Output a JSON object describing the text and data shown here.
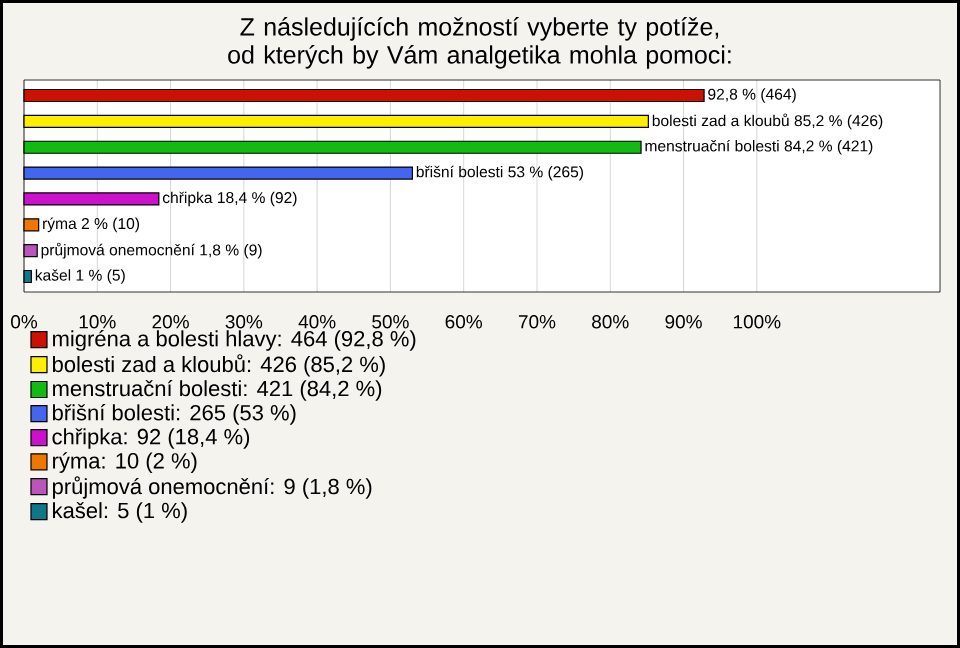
{
  "chart_data": {
    "type": "bar",
    "orientation": "horizontal",
    "title": "Z následujících možností vyberte ty potíže, od kterých by Vám analgetika mohla pomoci:",
    "categories": [
      null,
      null,
      null,
      null,
      null,
      null,
      null,
      null
    ],
    "series": [
      {
        "name": "migréna a bolesti hlavy: 464 (92,8 %)",
        "color": "#cc1100",
        "values": [
          92.8,
          null,
          null,
          null,
          null,
          null,
          null,
          null
        ],
        "value_labels": [
          "92,8 % (464)",
          null,
          null,
          null,
          null,
          null,
          null,
          null
        ]
      },
      {
        "name": "bolesti zad a kloubů: 426 (85,2 %)",
        "color": "#ffee00",
        "values": [
          null,
          85.2,
          null,
          null,
          null,
          null,
          null,
          null
        ],
        "value_labels": [
          null,
          "bolesti zad a kloubů 85,2 % (426)",
          null,
          null,
          null,
          null,
          null,
          null
        ]
      },
      {
        "name": "menstruační bolesti: 421 (84,2 %)",
        "color": "#11bb11",
        "values": [
          null,
          null,
          84.2,
          null,
          null,
          null,
          null,
          null
        ],
        "value_labels": [
          null,
          null,
          "menstruační bolesti 84,2 % (421)",
          null,
          null,
          null,
          null,
          null
        ]
      },
      {
        "name": "břišní bolesti: 265 (53 %)",
        "color": "#4466ee",
        "values": [
          null,
          null,
          null,
          53,
          null,
          null,
          null,
          null
        ],
        "value_labels": [
          null,
          null,
          null,
          "břišní bolesti 53 % (265)",
          null,
          null,
          null,
          null
        ]
      },
      {
        "name": "chřipka: 92 (18,4 %)",
        "color": "#cc11cc",
        "values": [
          null,
          null,
          null,
          null,
          18.4,
          null,
          null,
          null
        ],
        "value_labels": [
          null,
          null,
          null,
          null,
          "chřipka 18,4 % (92)",
          null,
          null,
          null
        ]
      },
      {
        "name": "rýma: 10 (2 %)",
        "color": "#ee7700",
        "values": [
          null,
          null,
          null,
          null,
          null,
          2,
          null,
          null
        ],
        "value_labels": [
          null,
          null,
          null,
          null,
          null,
          "rýma 2 % (10)",
          null,
          null
        ]
      },
      {
        "name": "průjmová onemocnění: 9 (1,8 %)",
        "color": "#bb55bb",
        "values": [
          null,
          null,
          null,
          null,
          null,
          null,
          1.8,
          null
        ],
        "value_labels": [
          null,
          null,
          null,
          null,
          null,
          null,
          "průjmová onemocnění 1,8 % (9)",
          null
        ]
      },
      {
        "name": "kašel: 5 (1 %)",
        "color": "#117788",
        "values": [
          null,
          null,
          null,
          null,
          null,
          null,
          null,
          1
        ],
        "value_labels": [
          null,
          null,
          null,
          null,
          null,
          null,
          null,
          "kašel 1 % (5)"
        ]
      }
    ],
    "xlim": [
      0,
      125
    ],
    "xticks": [
      {
        "value": 0,
        "label": "0%"
      },
      {
        "value": 10,
        "label": "10%"
      },
      {
        "value": 20,
        "label": "20%"
      },
      {
        "value": 30,
        "label": "30%"
      },
      {
        "value": 40,
        "label": "40%"
      },
      {
        "value": 50,
        "label": "50%"
      },
      {
        "value": 60,
        "label": "60%"
      },
      {
        "value": 70,
        "label": "70%"
      },
      {
        "value": 80,
        "label": "80%"
      },
      {
        "value": 90,
        "label": "90%"
      },
      {
        "value": 100,
        "label": "100%"
      }
    ],
    "grid": "x",
    "legend": "bottom"
  }
}
